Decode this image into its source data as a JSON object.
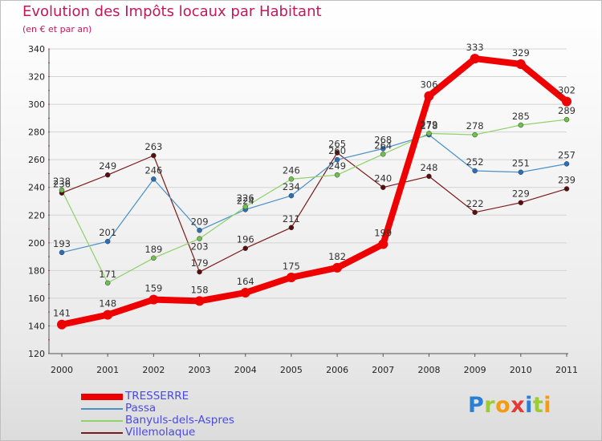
{
  "header": {
    "title": "Evolution des Impôts locaux par Habitant",
    "subtitle": "(en € et par an)"
  },
  "logo": {
    "letters": [
      {
        "char": "P",
        "color": "#2a7fd4"
      },
      {
        "char": "r",
        "color": "#9acd32"
      },
      {
        "char": "o",
        "color": "#f39c12"
      },
      {
        "char": "x",
        "color": "#e53935"
      },
      {
        "char": "i",
        "color": "#2a7fd4"
      },
      {
        "char": "t",
        "color": "#9acd32"
      },
      {
        "char": "i",
        "color": "#f39c12"
      }
    ]
  },
  "chart_data": {
    "type": "line",
    "title": "Evolution des Impôts locaux par Habitant",
    "subtitle": "(en € et par an)",
    "xlabel": "",
    "ylabel": "",
    "ylim": [
      120,
      340
    ],
    "yticks": [
      120,
      140,
      160,
      180,
      200,
      220,
      240,
      260,
      280,
      300,
      320,
      340
    ],
    "categories": [
      "2000",
      "2001",
      "2002",
      "2003",
      "2004",
      "2005",
      "2006",
      "2007",
      "2008",
      "2009",
      "2010",
      "2011"
    ],
    "grid": true,
    "legend": "bottom-left",
    "series": [
      {
        "name": "Villemolaque",
        "color": "#7a1a1a",
        "dot": "#5a0d0d",
        "width": 1.2,
        "values": [
          236,
          249,
          263,
          179,
          196,
          211,
          265,
          240,
          248,
          222,
          229,
          239
        ],
        "label_dy": [
          -7,
          -7,
          -7,
          -7,
          -7,
          -7,
          -7,
          -7,
          -7,
          -7,
          -7,
          -7
        ]
      },
      {
        "name": "Passa",
        "color": "#4a90c8",
        "dot": "#2a6fb8",
        "width": 1.2,
        "values": [
          193,
          201,
          246,
          209,
          224,
          234,
          260,
          268,
          278,
          252,
          251,
          257
        ],
        "label_dy": [
          -7,
          -7,
          -7,
          -7,
          -7,
          -7,
          -7,
          -7,
          -7,
          -7,
          -7,
          -7
        ]
      },
      {
        "name": "Banyuls-dels-Aspres",
        "color": "#8fd16a",
        "dot": "#6cc24a",
        "width": 1.2,
        "values": [
          238,
          171,
          189,
          203,
          226,
          246,
          249,
          264,
          279,
          278,
          285,
          289
        ],
        "label_dy": [
          -7,
          -7,
          -7,
          14,
          -7,
          -7,
          -7,
          -7,
          -7,
          -7,
          -7,
          -7
        ]
      },
      {
        "name": "TRESSERRE",
        "color": "#ee0000",
        "dot": "#ee0000",
        "width": 8,
        "values": [
          141,
          148,
          159,
          158,
          164,
          175,
          182,
          199,
          306,
          333,
          329,
          302
        ],
        "label_dy": [
          -10,
          -10,
          -10,
          -10,
          -10,
          -10,
          -10,
          -10,
          -10,
          -10,
          -10,
          -10
        ]
      }
    ]
  },
  "legend": {
    "items": [
      {
        "label": "TRESSERRE",
        "color": "#ee0000",
        "height": 8
      },
      {
        "label": "Passa",
        "color": "#4a90c8",
        "height": 2
      },
      {
        "label": "Banyuls-dels-Aspres",
        "color": "#8fd16a",
        "height": 2
      },
      {
        "label": "Villemolaque",
        "color": "#7a1a1a",
        "height": 2
      }
    ]
  }
}
